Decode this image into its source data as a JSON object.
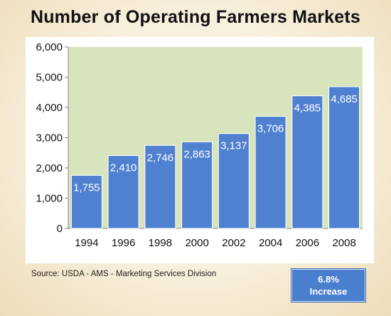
{
  "title": "Number of Operating Farmers Markets",
  "source": "Source:  USDA - AMS - Marketing Services Division",
  "badge": {
    "line1": "6.8%",
    "line2": "Increase"
  },
  "colors": {
    "plot_background": "#d7e4bd",
    "bar": "#4f81d0",
    "bar_label": "#ffffff",
    "badge": "#4a7fd0"
  },
  "chart_data": {
    "type": "bar",
    "categories": [
      "1994",
      "1996",
      "1998",
      "2000",
      "2002",
      "2004",
      "2006",
      "2008"
    ],
    "values": [
      1755,
      2410,
      2746,
      2863,
      3137,
      3706,
      4385,
      4685
    ],
    "value_labels": [
      "1,755",
      "2,410",
      "2,746",
      "2,863",
      "3,137",
      "3,706",
      "4,385",
      "4,685"
    ],
    "yticks": [
      0,
      1000,
      2000,
      3000,
      4000,
      5000,
      6000
    ],
    "ytick_labels": [
      "0",
      "1,000",
      "2,000",
      "3,000",
      "4,000",
      "5,000",
      "6,000"
    ],
    "ylim": [
      0,
      6000
    ],
    "title": "Number of Operating Farmers Markets",
    "xlabel": "",
    "ylabel": "",
    "grid": false,
    "legend": "none"
  }
}
